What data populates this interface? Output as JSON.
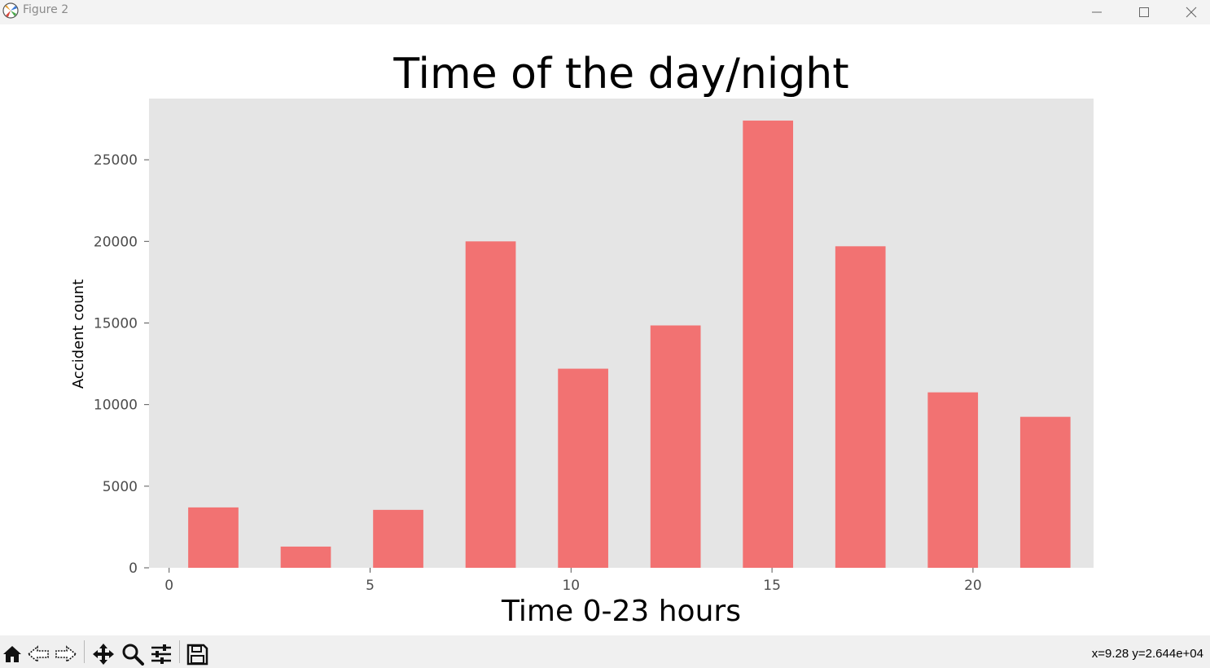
{
  "window": {
    "title": "Figure 2",
    "icons": [
      "app-icon",
      "minimize-icon",
      "maximize-icon",
      "close-icon"
    ]
  },
  "toolbar": {
    "tools": [
      "home-icon",
      "back-icon",
      "forward-icon",
      "pan-icon",
      "zoom-icon",
      "configure-icon",
      "save-icon"
    ],
    "coords": "x=9.28 y=2.644e+04"
  },
  "chart_data": {
    "type": "bar",
    "title": "Time of the day/night",
    "xlabel": "Time 0-23 hours",
    "ylabel": "Accident count",
    "x": [
      1.1,
      3.4,
      5.7,
      8.0,
      10.3,
      12.6,
      14.9,
      17.2,
      19.5,
      21.8
    ],
    "values": [
      3700,
      1300,
      3550,
      20000,
      12200,
      14850,
      27400,
      19700,
      10750,
      9250
    ],
    "bar_width": 1.25,
    "xlim": [
      -0.5,
      23.0
    ],
    "ylim": [
      0,
      28750
    ],
    "xticks": [
      0,
      5,
      10,
      15,
      20
    ],
    "yticks": [
      0,
      5000,
      10000,
      15000,
      20000,
      25000
    ],
    "grid": false,
    "bar_color": "#f27272",
    "axes_background": "#e5e5e5"
  }
}
